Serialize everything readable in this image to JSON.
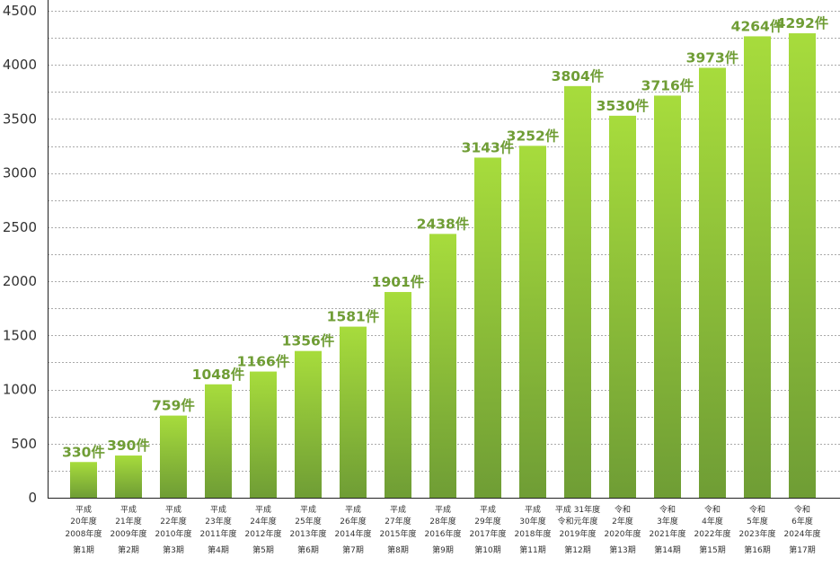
{
  "chart_data": {
    "type": "bar",
    "title": "",
    "xlabel": "",
    "ylabel": "",
    "ylim": [
      0,
      4500
    ],
    "y_ticks": [
      0,
      500,
      1000,
      1500,
      2000,
      2500,
      3000,
      3500,
      4000,
      4500
    ],
    "grid": true,
    "value_suffix": "件",
    "colors": {
      "bar_top": "#a7dc3c",
      "bar_bottom": "#6f9d35",
      "label": "#6f9d35",
      "grid": "#aaaaaa"
    },
    "categories": [
      [
        "平成",
        "20年度",
        "2008年度",
        "第1期"
      ],
      [
        "平成",
        "21年度",
        "2009年度",
        "第2期"
      ],
      [
        "平成",
        "22年度",
        "2010年度",
        "第3期"
      ],
      [
        "平成",
        "23年度",
        "2011年度",
        "第4期"
      ],
      [
        "平成",
        "24年度",
        "2012年度",
        "第5期"
      ],
      [
        "平成",
        "25年度",
        "2013年度",
        "第6期"
      ],
      [
        "平成",
        "26年度",
        "2014年度",
        "第7期"
      ],
      [
        "平成",
        "27年度",
        "2015年度",
        "第8期"
      ],
      [
        "平成",
        "28年度",
        "2016年度",
        "第9期"
      ],
      [
        "平成",
        "29年度",
        "2017年度",
        "第10期"
      ],
      [
        "平成",
        "30年度",
        "2018年度",
        "第11期"
      ],
      [
        "平成 31年度",
        "令和元年度",
        "2019年度",
        "第12期"
      ],
      [
        "令和",
        "2年度",
        "2020年度",
        "第13期"
      ],
      [
        "令和",
        "3年度",
        "2021年度",
        "第14期"
      ],
      [
        "令和",
        "4年度",
        "2022年度",
        "第15期"
      ],
      [
        "令和",
        "5年度",
        "2023年度",
        "第16期"
      ],
      [
        "令和",
        "6年度",
        "2024年度",
        "第17期"
      ]
    ],
    "values": [
      330,
      390,
      759,
      1048,
      1166,
      1356,
      1581,
      1901,
      2438,
      3143,
      3252,
      3804,
      3530,
      3716,
      3973,
      4264,
      4292
    ],
    "value_labels": [
      "330件",
      "390件",
      "759件",
      "1048件",
      "1166件",
      "1356件",
      "1581件",
      "1901件",
      "2438件",
      "3143件",
      "3252件",
      "3804件",
      "3530件",
      "3716件",
      "3973件",
      "4264件",
      "4292件"
    ]
  }
}
